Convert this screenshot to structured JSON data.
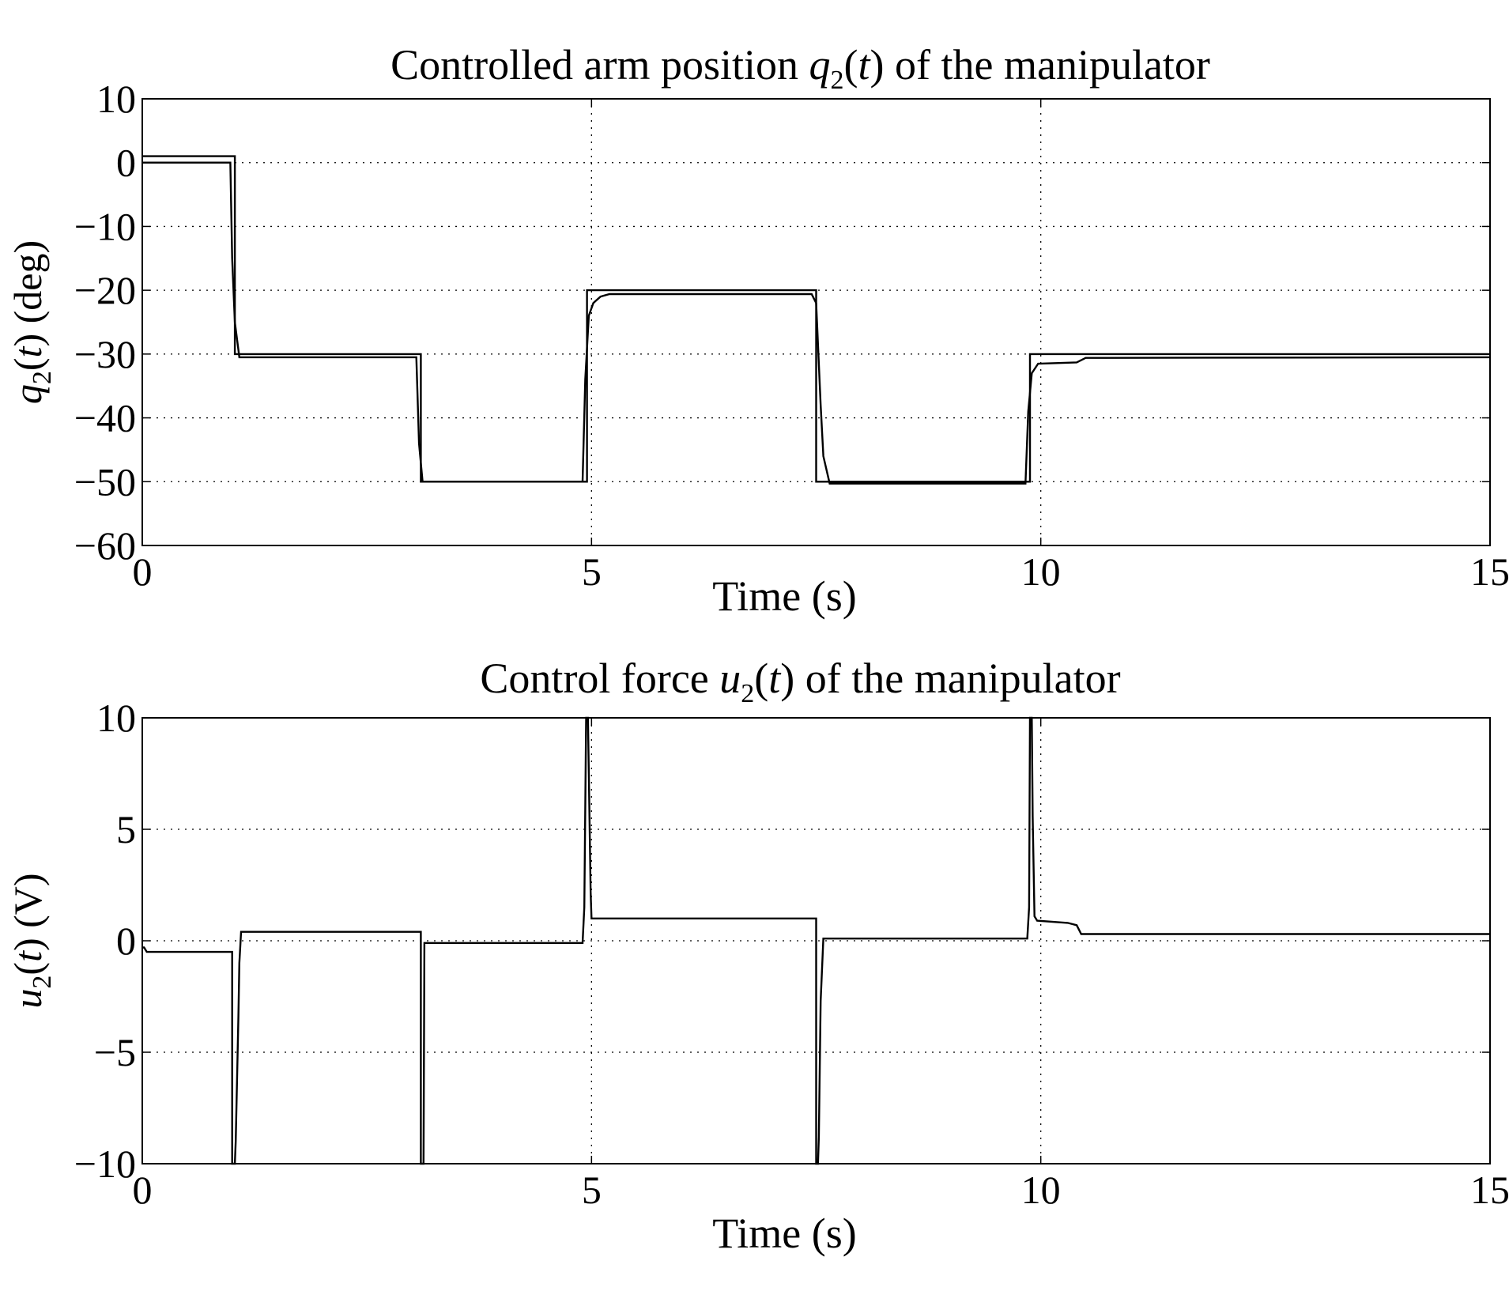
{
  "chart_data": [
    {
      "type": "line",
      "title": {
        "pre": "Controlled arm position ",
        "var": "q",
        "sub": "2",
        "open": "(",
        "arg": "t",
        "post": ") of the manipulator"
      },
      "xlabel": "Time (s)",
      "ylabel": {
        "var": "q",
        "sub": "2",
        "open": "(",
        "arg": "t",
        "post": ") (deg)"
      },
      "xlim": [
        0,
        15
      ],
      "ylim": [
        -60,
        10
      ],
      "xticks": [
        0,
        5,
        10,
        15
      ],
      "yticks": [
        10,
        0,
        -10,
        -20,
        -30,
        -40,
        -50,
        -60
      ],
      "xtick_labels": [
        "0",
        "5",
        "10",
        "15"
      ],
      "ytick_labels": [
        "10",
        "0",
        "−10",
        "−20",
        "−30",
        "−40",
        "−50",
        "−60"
      ],
      "grid": true,
      "series": [
        {
          "values": [
            [
              0,
              1
            ],
            [
              1.03,
              1
            ],
            [
              1.03,
              -30
            ],
            [
              3.1,
              -30
            ],
            [
              3.1,
              -50
            ],
            [
              4.95,
              -50
            ],
            [
              4.95,
              -20
            ],
            [
              7.5,
              -20
            ],
            [
              7.5,
              -50
            ],
            [
              9.88,
              -50
            ],
            [
              9.88,
              -30
            ],
            [
              15,
              -30
            ]
          ]
        },
        {
          "values": [
            [
              0,
              0
            ],
            [
              0.98,
              0
            ],
            [
              1.0,
              -15
            ],
            [
              1.03,
              -25
            ],
            [
              1.08,
              -30.5
            ],
            [
              3.05,
              -30.5
            ],
            [
              3.08,
              -44
            ],
            [
              3.12,
              -50
            ],
            [
              4.9,
              -50
            ],
            [
              4.93,
              -34
            ],
            [
              4.97,
              -24
            ],
            [
              5.02,
              -22
            ],
            [
              5.1,
              -21
            ],
            [
              5.2,
              -20.6
            ],
            [
              7.45,
              -20.6
            ],
            [
              7.5,
              -22
            ],
            [
              7.55,
              -38
            ],
            [
              7.58,
              -46
            ],
            [
              7.65,
              -50.3
            ],
            [
              9.83,
              -50.3
            ],
            [
              9.86,
              -39
            ],
            [
              9.9,
              -33
            ],
            [
              9.97,
              -31.5
            ],
            [
              10.4,
              -31.3
            ],
            [
              10.5,
              -30.6
            ],
            [
              15,
              -30.5
            ]
          ]
        }
      ]
    },
    {
      "type": "line",
      "title": {
        "pre": "Control force ",
        "var": "u",
        "sub": "2",
        "open": "(",
        "arg": "t",
        "post": ") of the manipulator"
      },
      "xlabel": "Time (s)",
      "ylabel": {
        "var": "u",
        "sub": "2",
        "open": "(",
        "arg": "t",
        "post": ") (V)"
      },
      "xlim": [
        0,
        15
      ],
      "ylim": [
        -10,
        10
      ],
      "xticks": [
        0,
        5,
        10,
        15
      ],
      "yticks": [
        10,
        5,
        0,
        -5,
        -10
      ],
      "xtick_labels": [
        "0",
        "5",
        "10",
        "15"
      ],
      "ytick_labels": [
        "10",
        "5",
        "0",
        "−5",
        "−10"
      ],
      "grid": true,
      "series": [
        {
          "values": [
            [
              0,
              -0.3
            ],
            [
              0.02,
              -0.3
            ],
            [
              0.05,
              -0.5
            ],
            [
              1.0,
              -0.5
            ],
            [
              1.0,
              -10
            ],
            [
              1.03,
              -10
            ],
            [
              1.04,
              -9
            ],
            [
              1.07,
              -3.4
            ],
            [
              1.08,
              -1
            ],
            [
              1.1,
              0.4
            ],
            [
              3.1,
              0.4
            ],
            [
              3.1,
              -10
            ],
            [
              3.13,
              -10
            ],
            [
              3.14,
              -0.1
            ],
            [
              4.9,
              -0.1
            ],
            [
              4.92,
              1.5
            ],
            [
              4.94,
              10
            ],
            [
              4.96,
              10
            ],
            [
              4.97,
              7.5
            ],
            [
              4.99,
              2.2
            ],
            [
              5.0,
              1.0
            ],
            [
              7.5,
              1.0
            ],
            [
              7.5,
              -10
            ],
            [
              7.52,
              -10
            ],
            [
              7.53,
              -8.8
            ],
            [
              7.55,
              -2.7
            ],
            [
              7.58,
              0.1
            ],
            [
              9.85,
              0.1
            ],
            [
              9.87,
              1.5
            ],
            [
              9.88,
              10
            ],
            [
              9.9,
              10
            ],
            [
              9.91,
              5.6
            ],
            [
              9.93,
              1.1
            ],
            [
              9.96,
              0.9
            ],
            [
              10.3,
              0.8
            ],
            [
              10.4,
              0.7
            ],
            [
              10.45,
              0.3
            ],
            [
              15,
              0.3
            ]
          ]
        }
      ]
    }
  ]
}
